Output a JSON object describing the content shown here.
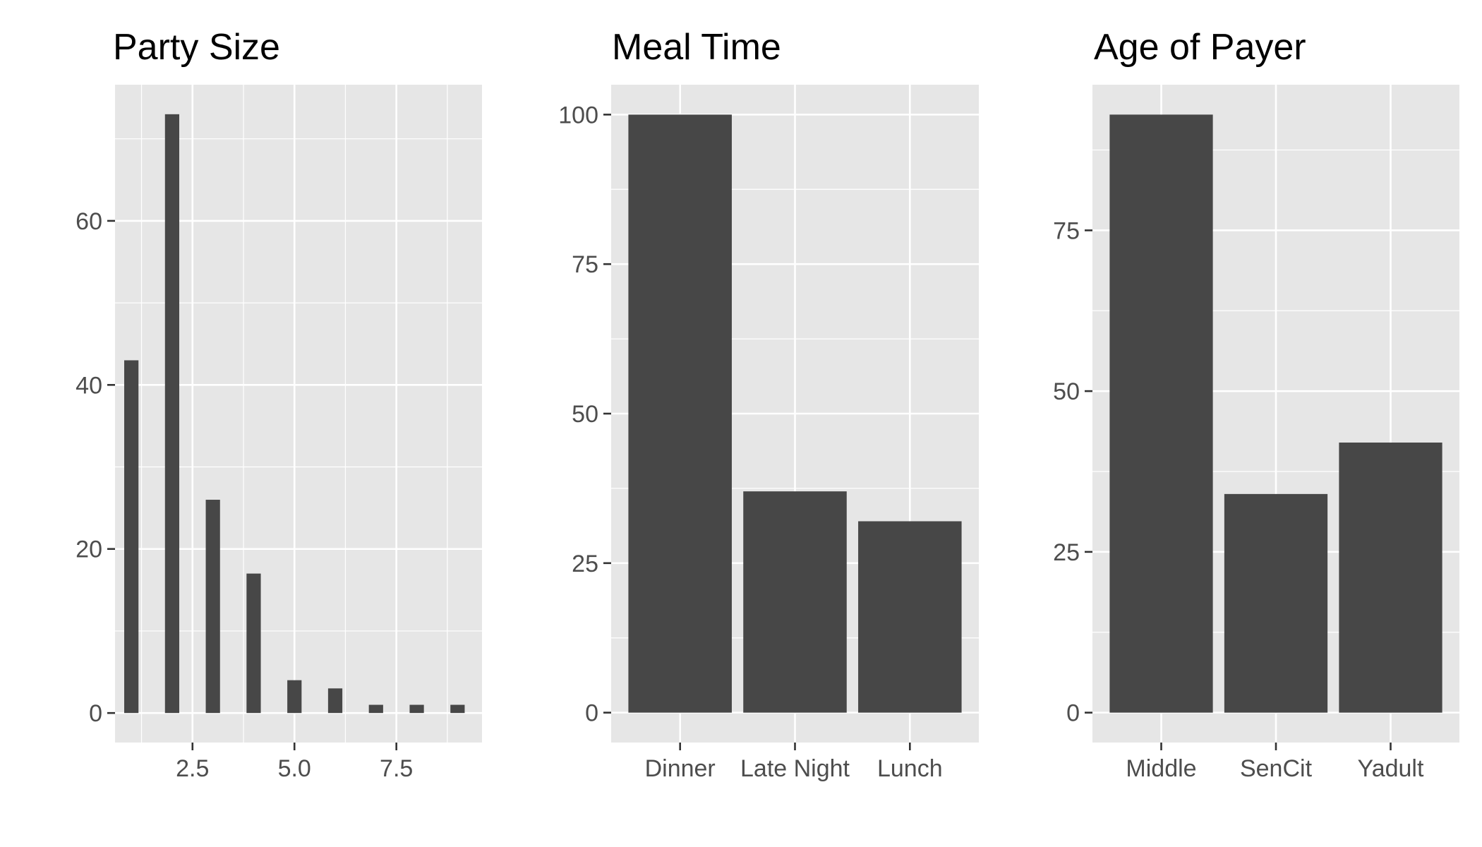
{
  "chart_data": [
    {
      "type": "bar",
      "title": "Party Size",
      "xlabel": "",
      "ylabel": "",
      "x": [
        1,
        2,
        3,
        4,
        5,
        6,
        7,
        8,
        9
      ],
      "values": [
        43,
        73,
        26,
        17,
        4,
        3,
        1,
        1,
        1
      ],
      "xlim": [
        0.6,
        9.6
      ],
      "ylim": [
        -3.6,
        76.6
      ],
      "xticks": [
        2.5,
        5.0,
        7.5
      ],
      "xtick_labels": [
        "2.5",
        "5.0",
        "7.5"
      ],
      "yticks": [
        0,
        20,
        40,
        60
      ],
      "ytick_labels": [
        "0",
        "20",
        "40",
        "60"
      ],
      "grid": true
    },
    {
      "type": "bar",
      "title": "Meal Time",
      "xlabel": "",
      "ylabel": "",
      "categories": [
        "Dinner",
        "Late Night",
        "Lunch"
      ],
      "values": [
        100,
        37,
        32
      ],
      "ylim": [
        -5,
        105
      ],
      "yticks": [
        0,
        25,
        50,
        75,
        100
      ],
      "ytick_labels": [
        "0",
        "25",
        "50",
        "75",
        "100"
      ],
      "grid": true
    },
    {
      "type": "bar",
      "title": "Age of Payer",
      "xlabel": "",
      "ylabel": "",
      "categories": [
        "Middle",
        "SenCit",
        "Yadult"
      ],
      "values": [
        93,
        34,
        42
      ],
      "ylim": [
        -4.65,
        97.65
      ],
      "yticks": [
        0,
        25,
        50,
        75
      ],
      "ytick_labels": [
        "0",
        "25",
        "50",
        "75"
      ],
      "grid": true
    }
  ]
}
